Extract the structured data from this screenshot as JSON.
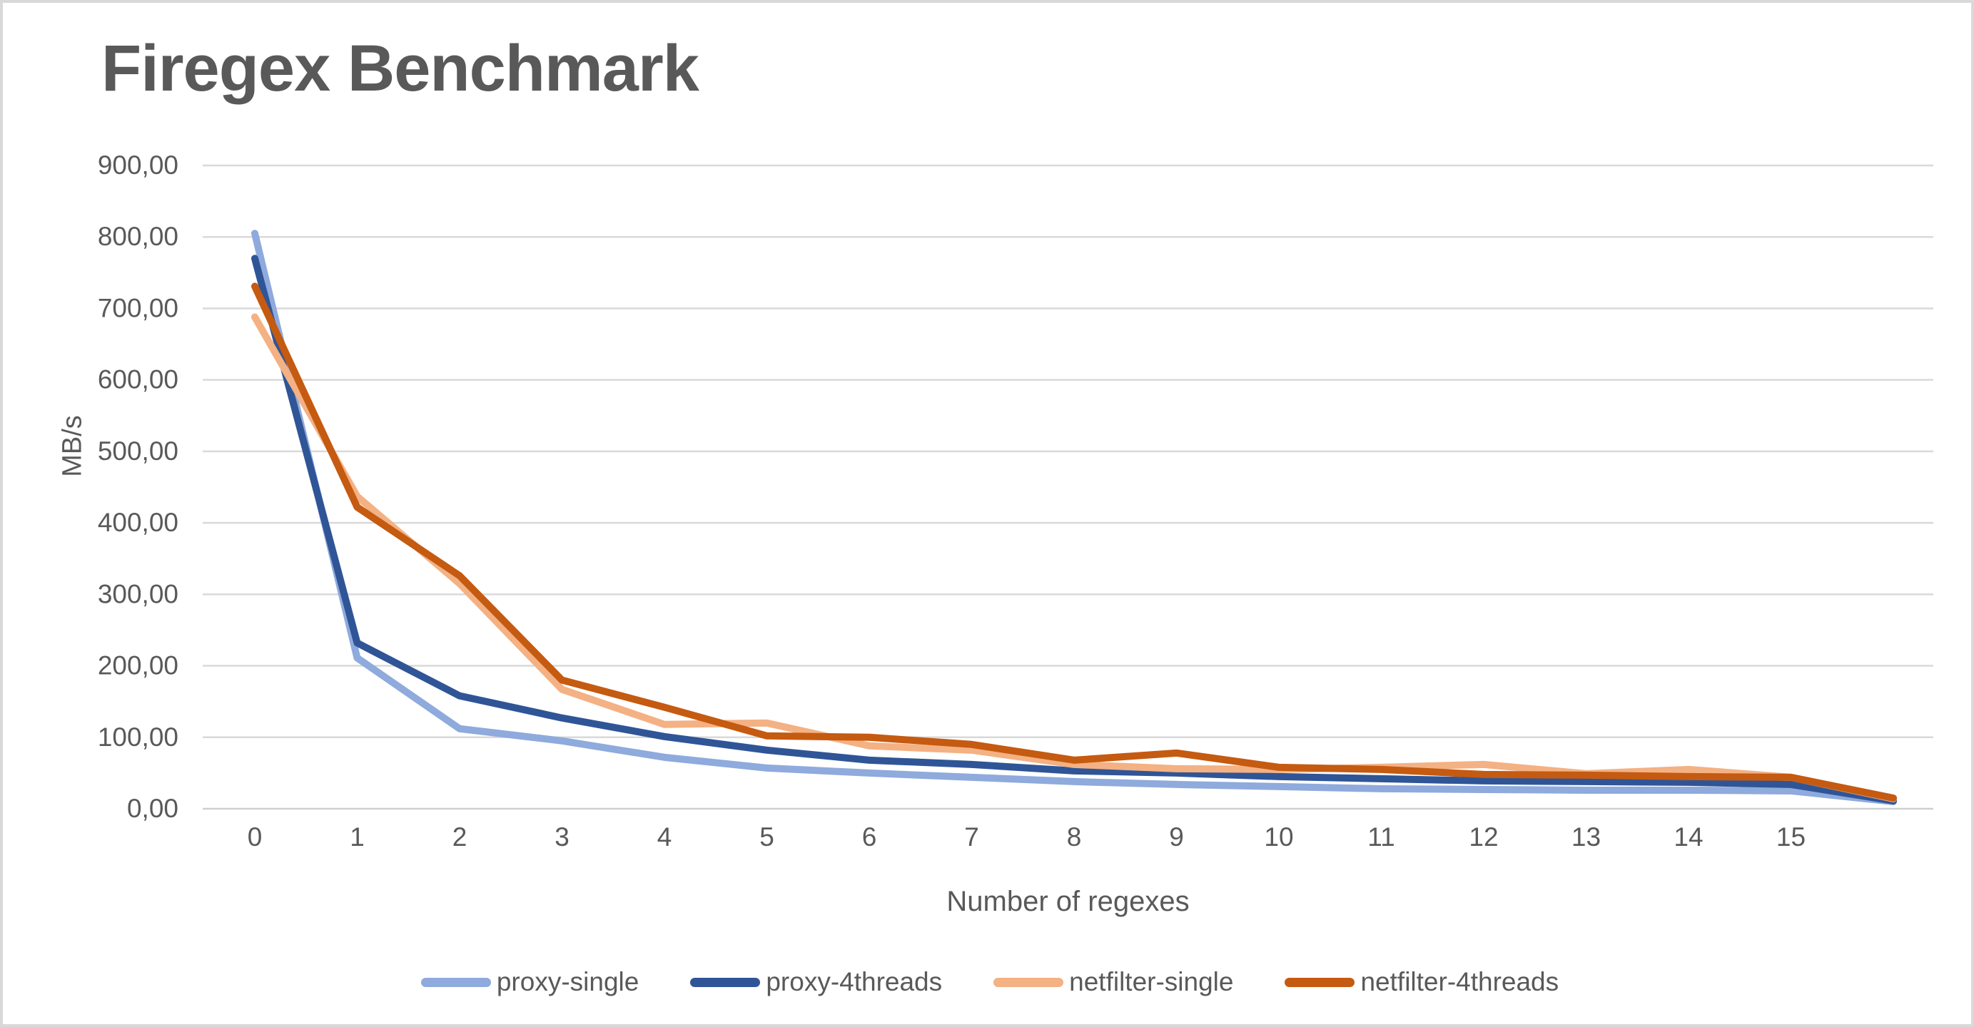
{
  "title": "Firegex Benchmark",
  "colors": {
    "text": "#595959",
    "gridline": "#D9D9D9",
    "baseline": "#CFCFCF",
    "background": "#FFFFFF",
    "canvas_border": "#D9D9D9"
  },
  "chart_data": {
    "type": "line",
    "title": "Firegex Benchmark",
    "xlabel": "Number of regexes",
    "ylabel": "MB/s",
    "x": [
      0,
      1,
      2,
      3,
      4,
      5,
      6,
      7,
      8,
      9,
      10,
      11,
      12,
      13,
      14,
      15,
      16
    ],
    "x_tick_labels": [
      "0",
      "1",
      "2",
      "3",
      "4",
      "5",
      "6",
      "7",
      "8",
      "9",
      "10",
      "11",
      "12",
      "13",
      "14",
      "15"
    ],
    "y_tick_labels": [
      "0,00",
      "100,00",
      "200,00",
      "300,00",
      "400,00",
      "500,00",
      "600,00",
      "700,00",
      "800,00",
      "900,00"
    ],
    "ylim": [
      0,
      900
    ],
    "grid": true,
    "legend_position": "bottom",
    "series": [
      {
        "name": "proxy-single",
        "color": "#8FAADC",
        "values": [
          805,
          211,
          112,
          95,
          72,
          57,
          50,
          44,
          38,
          34,
          31,
          28,
          27,
          26,
          26,
          25,
          10
        ]
      },
      {
        "name": "proxy-4threads",
        "color": "#2F5597",
        "values": [
          770,
          232,
          158,
          127,
          101,
          82,
          68,
          62,
          53,
          50,
          45,
          42,
          39,
          38,
          37,
          34,
          11
        ]
      },
      {
        "name": "netfilter-single",
        "color": "#F4B183",
        "values": [
          688,
          437,
          315,
          167,
          118,
          120,
          88,
          82,
          62,
          56,
          55,
          58,
          62,
          49,
          55,
          44,
          14
        ]
      },
      {
        "name": "netfilter-4threads",
        "color": "#C55A11",
        "values": [
          731,
          422,
          326,
          180,
          142,
          102,
          100,
          90,
          68,
          78,
          58,
          55,
          48,
          47,
          45,
          44,
          15
        ]
      }
    ]
  }
}
